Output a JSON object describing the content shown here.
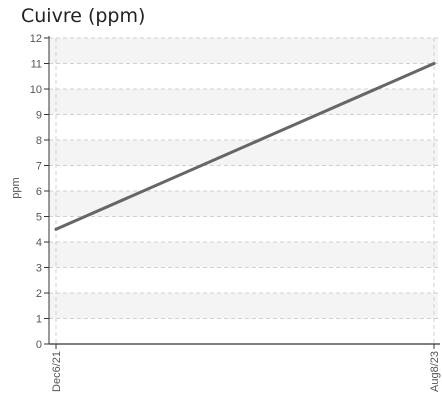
{
  "chart_data": {
    "type": "line",
    "title": "Cuivre (ppm)",
    "xlabel": "",
    "ylabel": "ppm",
    "categories": [
      "Dec6/21",
      "Aug8/23"
    ],
    "series": [
      {
        "values": [
          4.5,
          11
        ]
      }
    ],
    "ylim": [
      0,
      12
    ],
    "yticks": [
      0,
      1,
      2,
      3,
      4,
      5,
      6,
      7,
      8,
      9,
      10,
      11,
      12
    ],
    "grid": true,
    "colors": {
      "line": "#666666",
      "band": "#f4f4f4",
      "grid": "#d0d0d0",
      "axis": "#333333"
    }
  }
}
